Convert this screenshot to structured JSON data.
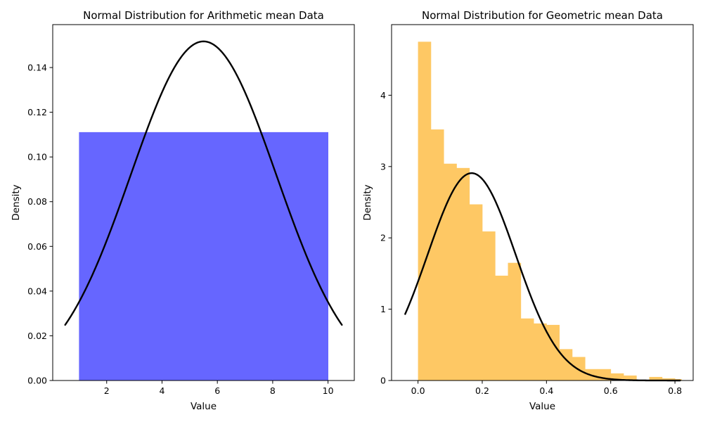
{
  "colors": {
    "left_bars": "#6666ff",
    "right_bars": "#fec864",
    "curve": "#000000"
  },
  "chart_data": [
    {
      "type": "histogram",
      "title": "Normal Distribution for Arithmetic mean Data",
      "xlabel": "Value",
      "ylabel": "Density",
      "xlim": [
        0.05,
        10.95
      ],
      "ylim": [
        0,
        0.1592
      ],
      "xticks": [
        2,
        4,
        6,
        8,
        10
      ],
      "xtick_labels": [
        "2",
        "4",
        "6",
        "8",
        "10"
      ],
      "yticks": [
        0,
        0.02,
        0.04,
        0.06,
        0.08,
        0.1,
        0.12,
        0.14
      ],
      "ytick_labels": [
        "0.00",
        "0.02",
        "0.04",
        "0.06",
        "0.08",
        "0.10",
        "0.12",
        "0.14"
      ],
      "bins": [
        {
          "x0": 1.0,
          "x1": 10.0,
          "density": 0.1111
        }
      ],
      "normal_curve": {
        "mean": 5.5,
        "std": 2.63,
        "x_range": [
          0.5,
          10.5
        ]
      }
    },
    {
      "type": "histogram",
      "title": "Normal Distribution for Geometric mean Data",
      "xlabel": "Value",
      "ylabel": "Density",
      "xlim": [
        -0.0823,
        0.8567
      ],
      "ylim": [
        0,
        4.99
      ],
      "xticks": [
        0.0,
        0.2,
        0.4,
        0.6,
        0.8
      ],
      "xtick_labels": [
        "0.0",
        "0.2",
        "0.4",
        "0.6",
        "0.8"
      ],
      "yticks": [
        0,
        1,
        2,
        3,
        4
      ],
      "ytick_labels": [
        "0",
        "1",
        "2",
        "3",
        "4"
      ],
      "bins": [
        {
          "x0": 0.0,
          "x1": 0.04,
          "density": 4.75
        },
        {
          "x0": 0.04,
          "x1": 0.08,
          "density": 3.52
        },
        {
          "x0": 0.08,
          "x1": 0.12,
          "density": 3.04
        },
        {
          "x0": 0.12,
          "x1": 0.16,
          "density": 2.98
        },
        {
          "x0": 0.16,
          "x1": 0.2,
          "density": 2.47
        },
        {
          "x0": 0.2,
          "x1": 0.24,
          "density": 2.09
        },
        {
          "x0": 0.24,
          "x1": 0.28,
          "density": 1.47
        },
        {
          "x0": 0.28,
          "x1": 0.32,
          "density": 1.65
        },
        {
          "x0": 0.32,
          "x1": 0.36,
          "density": 0.87
        },
        {
          "x0": 0.36,
          "x1": 0.4,
          "density": 0.8
        },
        {
          "x0": 0.4,
          "x1": 0.44,
          "density": 0.78
        },
        {
          "x0": 0.44,
          "x1": 0.48,
          "density": 0.44
        },
        {
          "x0": 0.48,
          "x1": 0.52,
          "density": 0.33
        },
        {
          "x0": 0.52,
          "x1": 0.56,
          "density": 0.16
        },
        {
          "x0": 0.56,
          "x1": 0.6,
          "density": 0.16
        },
        {
          "x0": 0.6,
          "x1": 0.64,
          "density": 0.1
        },
        {
          "x0": 0.64,
          "x1": 0.68,
          "density": 0.07
        },
        {
          "x0": 0.68,
          "x1": 0.72,
          "density": 0.0
        },
        {
          "x0": 0.72,
          "x1": 0.76,
          "density": 0.05
        },
        {
          "x0": 0.76,
          "x1": 0.8,
          "density": 0.03
        },
        {
          "x0": 0.8,
          "x1": 0.82,
          "density": 0.02
        }
      ],
      "normal_curve": {
        "mean": 0.167,
        "std": 0.1372,
        "x_range": [
          -0.04,
          0.816
        ]
      }
    }
  ]
}
